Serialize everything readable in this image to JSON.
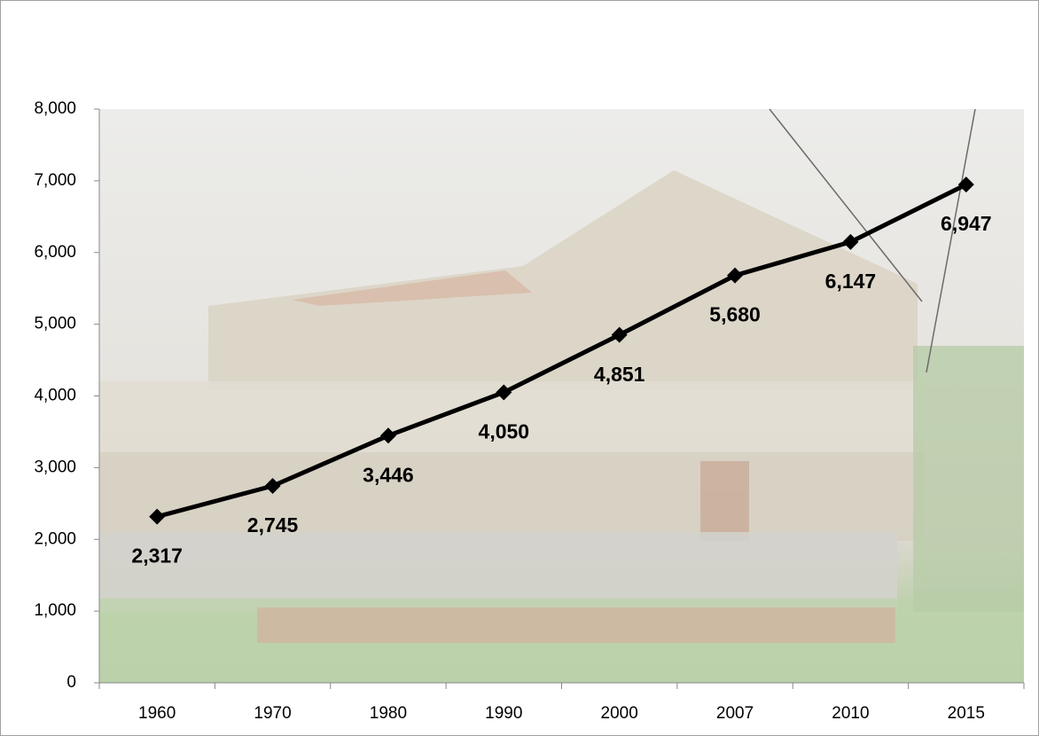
{
  "chart_data": {
    "type": "line",
    "categories": [
      "1960",
      "1970",
      "1980",
      "1990",
      "2000",
      "2007",
      "2010",
      "2015"
    ],
    "series": [
      {
        "color": "#000000",
        "values": [
          2317,
          2745,
          3446,
          4050,
          4851,
          5680,
          6147,
          6947
        ],
        "value_labels": [
          "2,317",
          "2,745",
          "3,446",
          "4,050",
          "4,851",
          "5,680",
          "6,147",
          "6,947"
        ]
      }
    ],
    "ylim": [
      0,
      8000
    ],
    "yticks": [
      0,
      {
        "value": 1000,
        "label": "1,000"
      },
      {
        "value": 2000,
        "label": "2,000"
      },
      {
        "value": 3000,
        "label": "3,000"
      },
      {
        "value": 4000,
        "label": "4,000"
      },
      {
        "value": 5000,
        "label": "5,000"
      },
      {
        "value": 6000,
        "label": "6,000"
      },
      {
        "value": 7000,
        "label": "7,000"
      },
      {
        "value": 8000,
        "label": "8,000"
      }
    ]
  }
}
